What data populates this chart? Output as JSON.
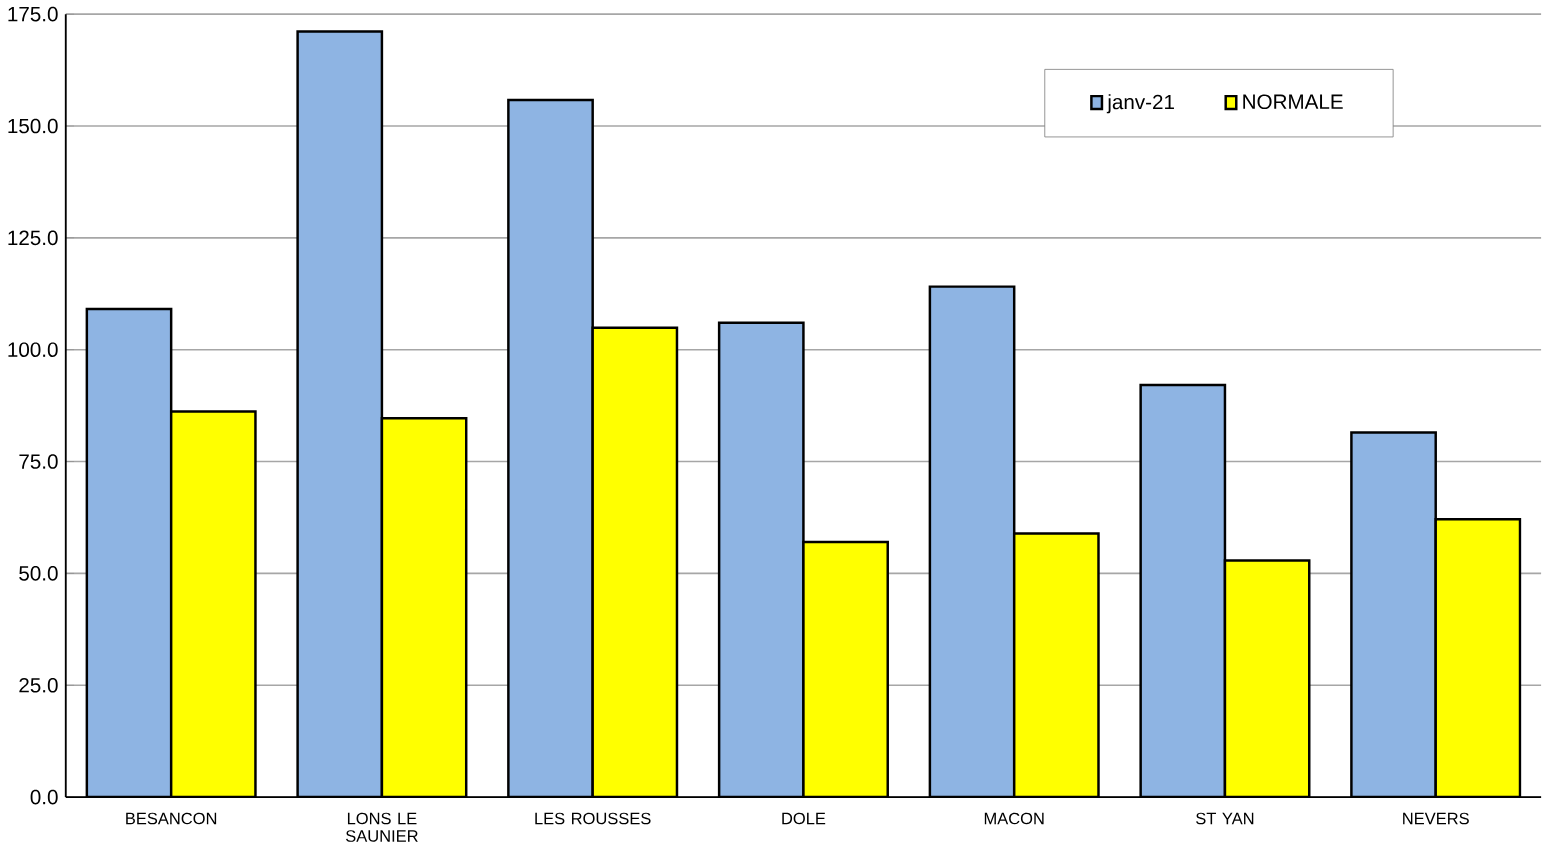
{
  "chart_data": {
    "type": "bar",
    "categories": [
      "BESANCON",
      "LONS LE SAUNIER",
      "LES ROUSSES",
      "DOLE",
      "MACON",
      "ST YAN",
      "NEVERS"
    ],
    "series": [
      {
        "name": "janv-21",
        "color": "#8eb4e3",
        "values": [
          109.1,
          171.1,
          155.8,
          106.0,
          114.1,
          92.1,
          81.5
        ]
      },
      {
        "name": "NORMALE",
        "color": "#ffff00",
        "values": [
          86.2,
          84.7,
          104.9,
          57.0,
          58.9,
          52.9,
          62.1
        ]
      }
    ],
    "ylim": [
      0,
      175
    ],
    "yticks": [
      {
        "value": 0,
        "label": "0.0"
      },
      {
        "value": 25,
        "label": "25.0"
      },
      {
        "value": 50,
        "label": "50.0"
      },
      {
        "value": 75,
        "label": "75.0"
      },
      {
        "value": 100,
        "label": "100.0"
      },
      {
        "value": 125,
        "label": "125.0"
      },
      {
        "value": 150,
        "label": "150.0"
      },
      {
        "value": 175,
        "label": "175.0"
      }
    ],
    "grid": "y",
    "legend": "top right"
  }
}
